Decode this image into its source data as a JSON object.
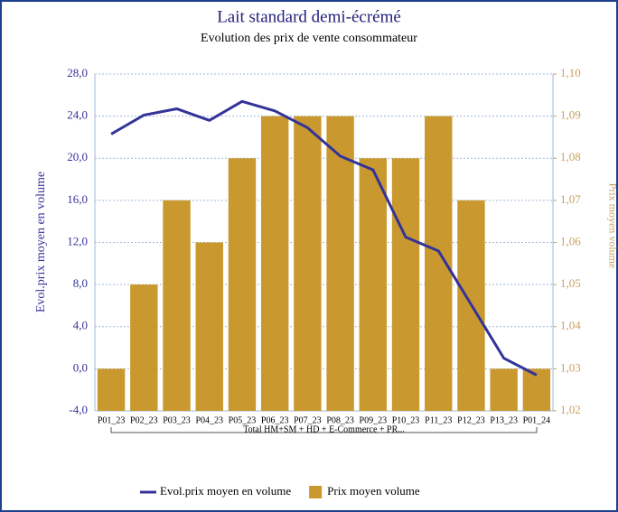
{
  "chart_data": {
    "type": "bar",
    "title": "Lait standard demi-écrémé",
    "subtitle": "Evolution des prix de vente consommateur",
    "y_label": "Evol.prix moyen en volume",
    "y2_label": "Prix moyen volume",
    "x_group_label": "Total HM+SM + HD + E-Commerce + PR...",
    "categories": [
      "P01_23",
      "P02_23",
      "P03_23",
      "P04_23",
      "P05_23",
      "P06_23",
      "P07_23",
      "P08_23",
      "P09_23",
      "P10_23",
      "P11_23",
      "P12_23",
      "P13_23",
      "P01_24"
    ],
    "series": [
      {
        "name": "Evol.prix moyen en volume",
        "type": "line",
        "axis": "y",
        "color": "#333399",
        "values": [
          22.3,
          24.1,
          24.7,
          23.6,
          25.4,
          24.5,
          22.9,
          20.2,
          18.9,
          12.5,
          11.2,
          6.1,
          1.0,
          -0.6
        ]
      },
      {
        "name": "Prix moyen volume",
        "type": "bar",
        "axis": "y2",
        "color": "#c9992f",
        "values": [
          1.03,
          1.05,
          1.07,
          1.06,
          1.08,
          1.09,
          1.09,
          1.09,
          1.08,
          1.08,
          1.09,
          1.07,
          1.03,
          1.03
        ]
      }
    ],
    "ylim": [
      -4,
      28
    ],
    "yticks": [
      {
        "value": -4,
        "label": "-4,0"
      },
      {
        "value": 0,
        "label": "0,0"
      },
      {
        "value": 4,
        "label": "4,0"
      },
      {
        "value": 8,
        "label": "8,0"
      },
      {
        "value": 12,
        "label": "12,0"
      },
      {
        "value": 16,
        "label": "16,0"
      },
      {
        "value": 20,
        "label": "20,0"
      },
      {
        "value": 24,
        "label": "24,0"
      },
      {
        "value": 28,
        "label": "28,0"
      }
    ],
    "y2lim": [
      1.02,
      1.1
    ],
    "y2ticks": [
      {
        "value": 1.02,
        "label": "1,02"
      },
      {
        "value": 1.03,
        "label": "1,03"
      },
      {
        "value": 1.04,
        "label": "1,04"
      },
      {
        "value": 1.05,
        "label": "1,05"
      },
      {
        "value": 1.06,
        "label": "1,06"
      },
      {
        "value": 1.07,
        "label": "1,07"
      },
      {
        "value": 1.08,
        "label": "1,08"
      },
      {
        "value": 1.09,
        "label": "1,09"
      },
      {
        "value": 1.1,
        "label": "1,10"
      }
    ],
    "grid": true
  }
}
